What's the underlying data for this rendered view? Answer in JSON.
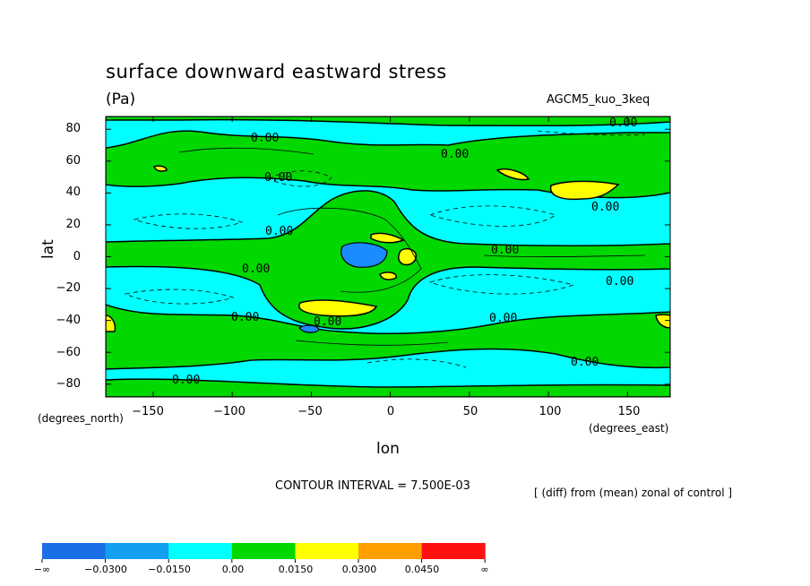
{
  "chart_data": {
    "type": "heatmap",
    "title": "surface downward eastward stress",
    "units": "(Pa)",
    "model_label": "AGCM5_kuo_3keq",
    "xlabel": "lon",
    "ylabel": "lat",
    "x_unit_label": "(degrees_east)",
    "y_unit_label": "(degrees_north)",
    "x_ticks": [
      "−150",
      "−100",
      "−50",
      "0",
      "50",
      "100",
      "150"
    ],
    "y_ticks": [
      "80",
      "60",
      "40",
      "20",
      "0",
      "−20",
      "−40",
      "−60",
      "−80"
    ],
    "xlim": [
      -180,
      177
    ],
    "ylim": [
      -88,
      88
    ],
    "contour_interval_text": "CONTOUR INTERVAL = 7.500E-03",
    "note": "[ (diff) from (mean) zonal of control ]",
    "contour_labels": [
      "0.00",
      "0.00",
      "0.00",
      "0.00",
      "0.00",
      "0.00",
      "0.00",
      "0.00",
      "0.00",
      "0.00",
      "0.00",
      "0.00",
      "0.00",
      "0.00"
    ],
    "colorbar": {
      "labels": [
        "−∞",
        "−0.0300",
        "−0.0150",
        "0.00",
        "0.0150",
        "0.0300",
        "0.0450",
        "∞"
      ],
      "colors": [
        "#1a6fe6",
        "#14a0f0",
        "#00ffff",
        "#00d800",
        "#ffff00",
        "#ffa000",
        "#ff1010"
      ]
    },
    "colors": {
      "negative_fill": "#00ffff",
      "positive_fill": "#00d800",
      "strong_negative": "#1a8cff",
      "strong_positive": "#ffff00"
    }
  }
}
